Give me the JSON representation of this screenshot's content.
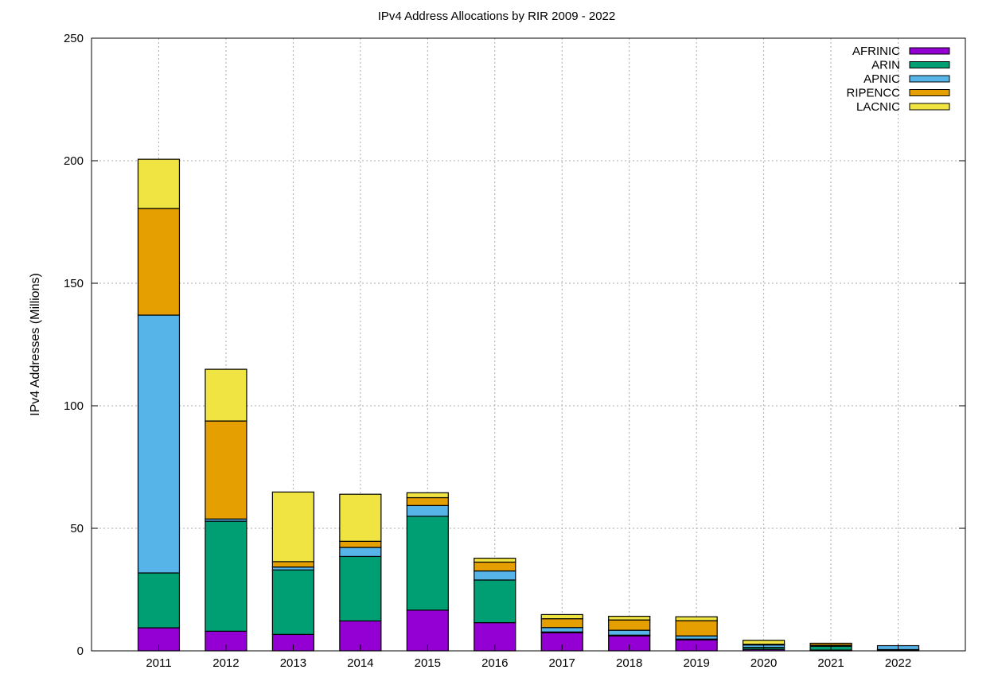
{
  "chart_data": {
    "type": "bar",
    "stacked": true,
    "title": "IPv4 Address Allocations by RIR 2009 - 2022",
    "xlabel": "",
    "ylabel": "IPv4 Addresses (Millions)",
    "ylim": [
      0,
      250
    ],
    "yticks": [
      0,
      50,
      100,
      150,
      200,
      250
    ],
    "grid": true,
    "legend_position": "top-right",
    "categories": [
      "2011",
      "2012",
      "2013",
      "2014",
      "2015",
      "2016",
      "2017",
      "2018",
      "2019",
      "2020",
      "2021",
      "2022"
    ],
    "series": [
      {
        "name": "AFRINIC",
        "color": "#9400d3",
        "values": [
          9.4,
          8.0,
          6.7,
          12.2,
          16.6,
          11.5,
          7.4,
          6.1,
          4.5,
          0.6,
          0.3,
          0.3
        ]
      },
      {
        "name": "ARIN",
        "color": "#009e73",
        "values": [
          22.4,
          44.9,
          26.3,
          26.3,
          38.3,
          17.4,
          0.3,
          0.3,
          0.3,
          0.8,
          1.6,
          0.2
        ]
      },
      {
        "name": "APNIC",
        "color": "#56b4e9",
        "values": [
          105.2,
          0.9,
          1.2,
          3.7,
          4.4,
          3.7,
          1.8,
          2.0,
          1.3,
          1.0,
          0.4,
          1.6
        ]
      },
      {
        "name": "RIPENCC",
        "color": "#e69f00",
        "values": [
          43.5,
          40.0,
          2.2,
          2.5,
          3.2,
          3.6,
          3.6,
          4.2,
          6.2,
          0.3,
          0.8,
          0.0
        ]
      },
      {
        "name": "LACNIC",
        "color": "#f0e442",
        "values": [
          20.1,
          21.1,
          28.4,
          19.2,
          2.0,
          1.6,
          1.7,
          1.5,
          1.6,
          1.6,
          0.0,
          0.0
        ]
      }
    ]
  }
}
